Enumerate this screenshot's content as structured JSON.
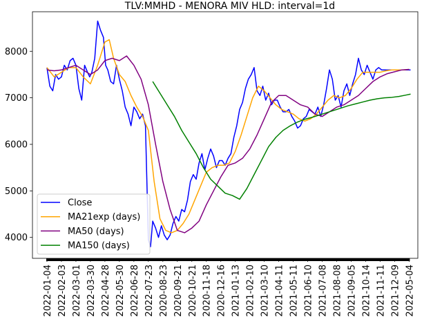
{
  "chart_data": {
    "type": "line",
    "title": "TLV:MMHD - MENORA MIV HLD: interval=1d",
    "xlabel": "",
    "ylabel": "",
    "grid": false,
    "legend_position": "lower-left",
    "x_tick_labels": [
      "2022-01-04",
      "2022-02-03",
      "2022-03-01",
      "2022-03-30",
      "2022-04-28",
      "2022-05-30",
      "2022-06-28",
      "2022-07-23",
      "2020-08-23",
      "2020-09-21",
      "2020-10-21",
      "2020-11-18",
      "2020-12-16",
      "2021-01-13",
      "2021-02-10",
      "2021-03-10",
      "2021-04-11",
      "2021-05-11",
      "2021-06-10",
      "2021-07-08",
      "2021-08-08",
      "2021-09-05",
      "2021-10-14",
      "2021-11-11",
      "2021-12-09",
      "2022-05-04"
    ],
    "y_ticks": [
      4000,
      5000,
      6000,
      7000,
      8000
    ],
    "ylim": [
      3550,
      8850
    ],
    "x_range": [
      -1,
      25.6
    ],
    "series": [
      {
        "name": "Close",
        "color": "#0000ff",
        "x": [
          0,
          0.2,
          0.4,
          0.6,
          0.8,
          1.0,
          1.2,
          1.4,
          1.6,
          1.8,
          2.0,
          2.2,
          2.4,
          2.6,
          2.8,
          2.95,
          3.1,
          3.3,
          3.5,
          3.7,
          3.9,
          4.05,
          4.2,
          4.4,
          4.6,
          4.8,
          5.0,
          5.2,
          5.4,
          5.6,
          5.8,
          6.0,
          6.2,
          6.4,
          6.6,
          6.8,
          7.0,
          7.15,
          7.3,
          7.5,
          7.7,
          7.9,
          8.1,
          8.3,
          8.5,
          8.7,
          8.9,
          9.1,
          9.3,
          9.5,
          9.7,
          9.9,
          10.1,
          10.3,
          10.5,
          10.7,
          10.9,
          11.1,
          11.3,
          11.5,
          11.7,
          11.9,
          12.1,
          12.3,
          12.5,
          12.7,
          12.9,
          13.1,
          13.3,
          13.5,
          13.7,
          13.9,
          14.1,
          14.3,
          14.5,
          14.7,
          14.9,
          15.1,
          15.3,
          15.5,
          15.7,
          15.9,
          16.1,
          16.3,
          16.5,
          16.7,
          16.9,
          17.1,
          17.3,
          17.5,
          17.7,
          17.9,
          18.1,
          18.3,
          18.5,
          18.7,
          18.9,
          19.1,
          19.3,
          19.5,
          19.7,
          19.9,
          20.1,
          20.3,
          20.5,
          20.7,
          20.9,
          21.1,
          21.3,
          21.5,
          21.7,
          21.9,
          22.1,
          22.3,
          22.5,
          22.7,
          22.9,
          23.1,
          23.3,
          23.5,
          23.7,
          23.9,
          24.1,
          24.3,
          24.5,
          24.7,
          24.9,
          25.1
        ],
        "values": [
          7650,
          7250,
          7150,
          7500,
          7400,
          7450,
          7700,
          7600,
          7800,
          7850,
          7700,
          7200,
          6950,
          7700,
          7550,
          7450,
          7550,
          7850,
          8650,
          8450,
          8300,
          7700,
          7600,
          7350,
          7300,
          7700,
          7400,
          7150,
          6800,
          6650,
          6400,
          6800,
          6700,
          6550,
          6650,
          6400,
          3950,
          3800,
          4350,
          4200,
          4000,
          4250,
          4050,
          3950,
          4050,
          4300,
          4450,
          4350,
          4600,
          4550,
          4800,
          5200,
          5350,
          5250,
          5600,
          5800,
          5450,
          5700,
          5900,
          5750,
          5500,
          5650,
          5650,
          5550,
          5700,
          5800,
          6150,
          6400,
          6750,
          6900,
          7200,
          7400,
          7500,
          7650,
          7150,
          7050,
          7250,
          6950,
          7100,
          6850,
          6950,
          6950,
          6800,
          6700,
          6700,
          6750,
          6600,
          6500,
          6350,
          6400,
          6550,
          6600,
          6750,
          6700,
          6650,
          6800,
          6600,
          6850,
          7200,
          7600,
          7400,
          6950,
          7050,
          6800,
          7150,
          7300,
          7050,
          7300,
          7500,
          7850,
          7600,
          7500,
          7700,
          7550,
          7400,
          7600,
          7650,
          7600,
          7600,
          7600,
          7600,
          7600,
          7600,
          7600,
          7600,
          7600,
          7600,
          7600
        ]
      },
      {
        "name": "MA21exp (days)",
        "color": "#ffa500",
        "x": [
          0,
          0.5,
          1.0,
          1.5,
          2.0,
          2.5,
          3.0,
          3.5,
          4.0,
          4.3,
          4.6,
          5.0,
          5.4,
          5.8,
          6.2,
          6.6,
          7.0,
          7.4,
          7.8,
          8.2,
          8.6,
          9.0,
          9.4,
          9.8,
          10.2,
          10.6,
          11.0,
          11.4,
          11.8,
          12.2,
          12.6,
          13.0,
          13.4,
          13.8,
          14.2,
          14.6,
          15.0,
          15.4,
          15.8,
          16.2,
          16.6,
          17.0,
          17.4,
          17.8,
          18.2,
          18.6,
          19.0,
          19.4,
          19.8,
          20.2,
          20.6,
          21.0,
          21.4,
          21.8,
          22.2,
          22.6,
          23.0,
          23.4,
          23.8,
          24.2,
          24.6,
          25.0
        ],
        "values": [
          7650,
          7450,
          7550,
          7650,
          7650,
          7450,
          7300,
          7700,
          8200,
          8250,
          7850,
          7500,
          7350,
          7050,
          6800,
          6600,
          6300,
          5200,
          4400,
          4150,
          4100,
          4150,
          4300,
          4500,
          4800,
          5100,
          5400,
          5500,
          5550,
          5550,
          5600,
          5850,
          6200,
          6600,
          7000,
          7250,
          7150,
          7000,
          6850,
          6750,
          6700,
          6650,
          6550,
          6500,
          6550,
          6650,
          6800,
          6950,
          7050,
          7000,
          7050,
          7200,
          7400,
          7550,
          7550,
          7550,
          7550,
          7580,
          7600,
          7600,
          7600,
          7610
        ]
      },
      {
        "name": "MA50 (days)",
        "color": "#800080",
        "x": [
          0,
          0.5,
          1.0,
          1.5,
          2.0,
          2.5,
          3.0,
          3.5,
          4.0,
          4.5,
          5.0,
          5.5,
          6.0,
          6.5,
          7.0,
          7.5,
          8.0,
          8.5,
          9.0,
          9.5,
          10.0,
          10.5,
          11.0,
          11.5,
          12.0,
          12.5,
          13.0,
          13.5,
          14.0,
          14.5,
          15.0,
          15.5,
          16.0,
          16.5,
          17.0,
          17.5,
          18.0,
          18.5,
          19.0,
          19.5,
          20.0,
          20.5,
          21.0,
          21.5,
          22.0,
          22.5,
          23.0,
          23.5,
          24.0,
          24.5,
          25.0
        ],
        "values": [
          7600,
          7580,
          7600,
          7650,
          7700,
          7600,
          7500,
          7600,
          7800,
          7850,
          7800,
          7900,
          7700,
          7400,
          6850,
          6000,
          5200,
          4600,
          4150,
          4100,
          4200,
          4350,
          4700,
          5000,
          5300,
          5550,
          5600,
          5700,
          5900,
          6200,
          6550,
          6900,
          7050,
          7050,
          6950,
          6850,
          6800,
          6650,
          6600,
          6700,
          6800,
          6850,
          6950,
          7050,
          7200,
          7350,
          7450,
          7520,
          7560,
          7600,
          7610
        ]
      },
      {
        "name": "MA150 (days)",
        "color": "#008000",
        "x": [
          7.3,
          7.8,
          8.3,
          8.8,
          9.3,
          9.8,
          10.3,
          10.8,
          11.3,
          11.8,
          12.3,
          12.8,
          13.3,
          13.8,
          14.3,
          14.8,
          15.3,
          15.8,
          16.3,
          16.8,
          17.3,
          17.8,
          18.3,
          18.8,
          19.3,
          19.8,
          20.3,
          20.8,
          21.3,
          21.8,
          22.3,
          22.8,
          23.3,
          23.8,
          24.3,
          24.8,
          25.1
        ],
        "values": [
          7350,
          7100,
          6850,
          6600,
          6300,
          6050,
          5800,
          5500,
          5250,
          5100,
          4950,
          4900,
          4820,
          5050,
          5350,
          5650,
          5950,
          6150,
          6300,
          6400,
          6480,
          6540,
          6580,
          6630,
          6680,
          6730,
          6780,
          6830,
          6870,
          6910,
          6950,
          6980,
          7000,
          7010,
          7030,
          7060,
          7080
        ]
      }
    ]
  }
}
